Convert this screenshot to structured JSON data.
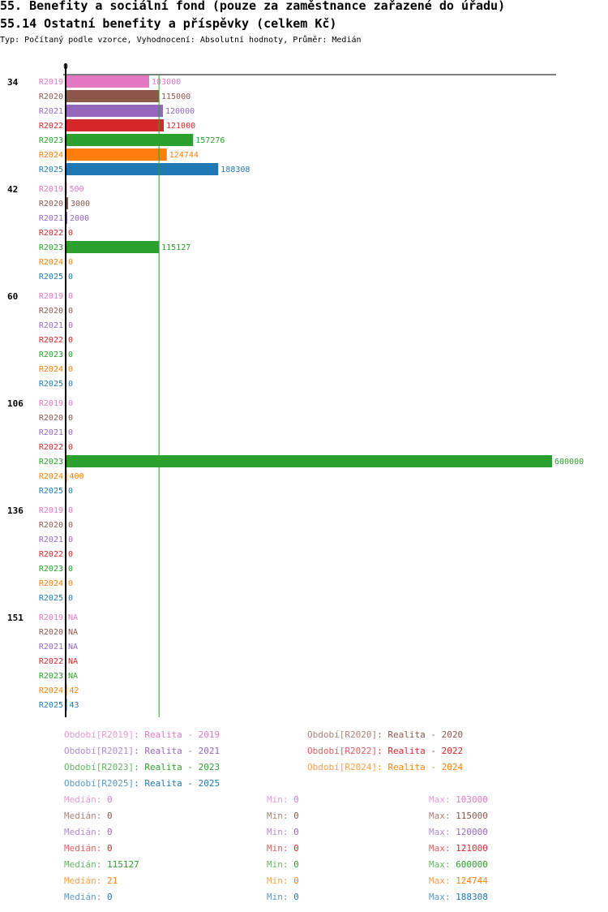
{
  "title": "55. Benefity a sociální fond (pouze za zaměstnance zařazené do úřadu)",
  "subtitle_heading": "55.14 Ostatní benefity a příspěvky (celkem Kč)",
  "type_line": "Typ: Počítaný podle vzorce, Vyhodnocení: Absolutní hodnoty, Průměr: Medián",
  "colors": {
    "R2019": "#e377c2",
    "R2020": "#8c564b",
    "R2021": "#9467bd",
    "R2022": "#d62728",
    "R2023": "#2ca02c",
    "R2024": "#ff7f0e",
    "R2025": "#1f77b4"
  },
  "chart_data": {
    "type": "bar",
    "orientation": "horizontal",
    "axis_zero_label": "0",
    "xlim": [
      0,
      600000
    ],
    "reference_line": {
      "label": "Medián",
      "value": 115127
    },
    "series": [
      "R2019",
      "R2020",
      "R2021",
      "R2022",
      "R2023",
      "R2024",
      "R2025"
    ],
    "groups": [
      {
        "label": "34",
        "values": [
          103000,
          115000,
          120000,
          121000,
          157276,
          124744,
          188308
        ],
        "labels": [
          "103000",
          "115000",
          "120000",
          "121000",
          "157276",
          "124744",
          "188308"
        ]
      },
      {
        "label": "42",
        "values": [
          500,
          3000,
          2000,
          0,
          115127,
          0,
          0
        ],
        "labels": [
          "500",
          "3000",
          "2000",
          "0",
          "115127",
          "0",
          "0"
        ]
      },
      {
        "label": "60",
        "values": [
          0,
          0,
          0,
          0,
          0,
          0,
          0
        ],
        "labels": [
          "0",
          "0",
          "0",
          "0",
          "0",
          "0",
          "0"
        ]
      },
      {
        "label": "106",
        "values": [
          0,
          0,
          0,
          0,
          600000,
          400,
          0
        ],
        "labels": [
          "0",
          "0",
          "0",
          "0",
          "600000",
          "400",
          "0"
        ]
      },
      {
        "label": "136",
        "values": [
          0,
          0,
          0,
          0,
          0,
          0,
          0
        ],
        "labels": [
          "0",
          "0",
          "0",
          "0",
          "0",
          "0",
          "0"
        ]
      },
      {
        "label": "151",
        "values": [
          null,
          null,
          null,
          null,
          null,
          42,
          43
        ],
        "labels": [
          "NA",
          "NA",
          "NA",
          "NA",
          "NA",
          "42",
          "43"
        ]
      }
    ]
  },
  "legend": {
    "period_key": "Období",
    "periods": [
      {
        "code": "[R2019]",
        "desc": ": Realita - 2019"
      },
      {
        "code": "[R2020]",
        "desc": ": Realita - 2020"
      },
      {
        "code": "[R2021]",
        "desc": ": Realita - 2021"
      },
      {
        "code": "[R2022]",
        "desc": ": Realita - 2022"
      },
      {
        "code": "[R2023]",
        "desc": ": Realita - 2023"
      },
      {
        "code": "[R2024]",
        "desc": ": Realita - 2024"
      },
      {
        "code": "[R2025]",
        "desc": ": Realita - 2025"
      }
    ],
    "median_key": "Medián:",
    "min_key": "Min:",
    "max_key": "Max:",
    "stats": [
      {
        "median": "0",
        "min": "0",
        "max": "103000"
      },
      {
        "median": "0",
        "min": "0",
        "max": "115000"
      },
      {
        "median": "0",
        "min": "0",
        "max": "120000"
      },
      {
        "median": "0",
        "min": "0",
        "max": "121000"
      },
      {
        "median": "115127",
        "min": "0",
        "max": "600000"
      },
      {
        "median": "21",
        "min": "0",
        "max": "124744"
      },
      {
        "median": "0",
        "min": "0",
        "max": "188308"
      }
    ]
  }
}
